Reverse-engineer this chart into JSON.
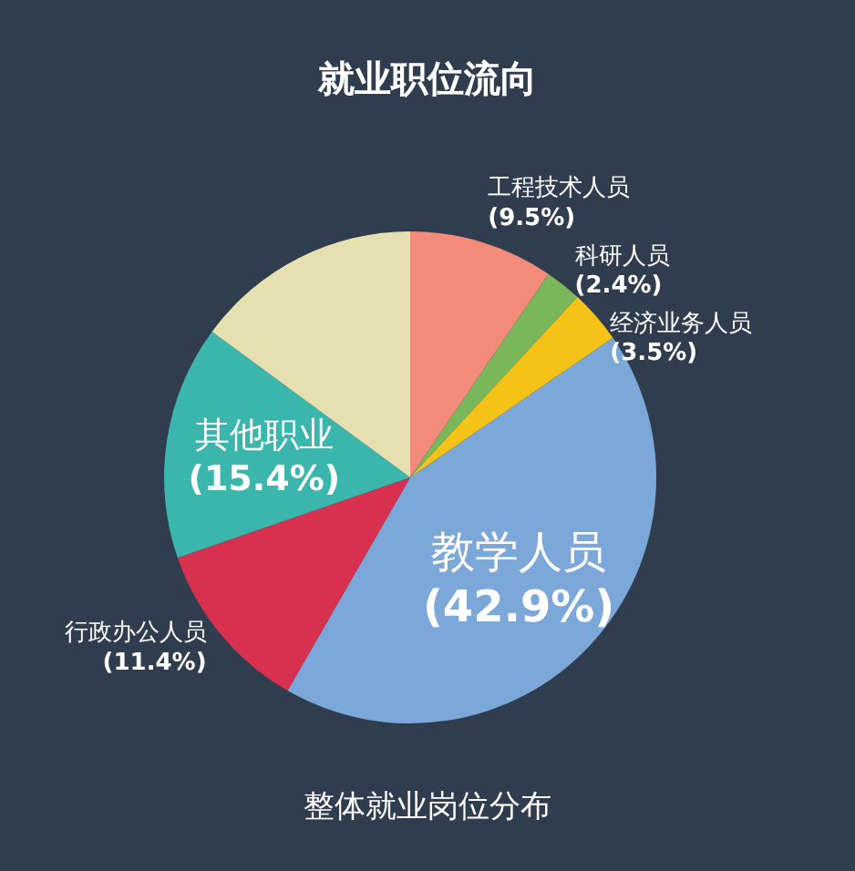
{
  "chart_data": {
    "type": "pie",
    "title": "就业职位流向",
    "categories": [
      "工程技术人员",
      "科研人员",
      "经济业务人员",
      "教学人员",
      "行政办公人员",
      "其他职业",
      null
    ],
    "values": [
      9.5,
      2.4,
      3.5,
      42.9,
      11.4,
      15.4,
      14.9
    ],
    "value_labels": [
      "(9.5%)",
      "(2.4%)",
      "(3.5%)",
      "(42.9%)",
      "(11.4%)",
      "(15.4%)",
      null
    ],
    "colors": [
      "#f28b7a",
      "#7ab65a",
      "#f5c318",
      "#7ba7d9",
      "#d8304f",
      "#3bb6ad",
      "#e6dfb0"
    ],
    "annotations": [
      "整体就业岗位分布"
    ]
  }
}
